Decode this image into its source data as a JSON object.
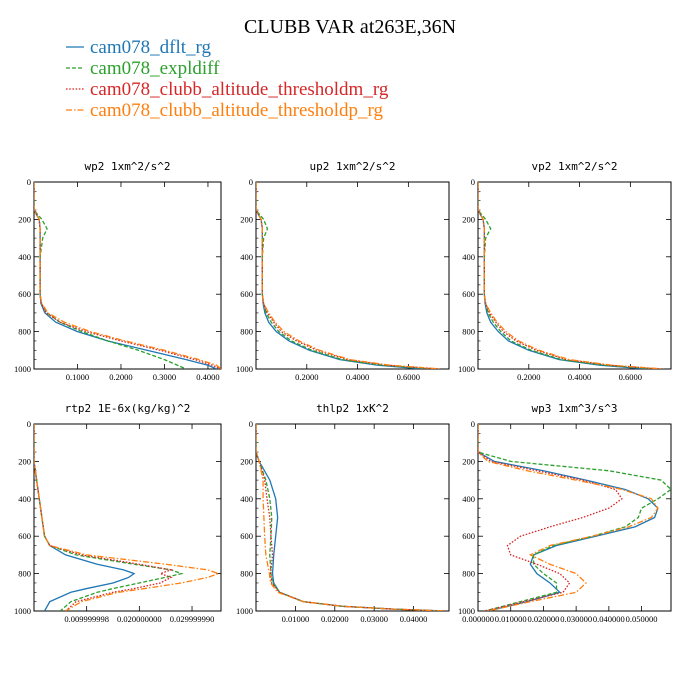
{
  "title": "CLUBB VAR at263E,36N",
  "legend": [
    {
      "label": "cam078_dflt_rg",
      "color": "#1f77b4",
      "dash": "solid"
    },
    {
      "label": "cam078_expldiff",
      "color": "#2ca02c",
      "dash": "dash"
    },
    {
      "label": "cam078_clubb_altitude_thresholdm_rg",
      "color": "#d62728",
      "dash": "dot"
    },
    {
      "label": "cam078_clubb_altitude_thresholdp_rg",
      "color": "#ff7f0e",
      "dash": "dashdot"
    }
  ],
  "chart_data": [
    {
      "type": "line",
      "title": "wp2  1xm^2/s^2",
      "ylim": [
        1000,
        0
      ],
      "yticks": [
        0,
        200,
        400,
        600,
        800,
        1000
      ],
      "xlim": [
        0,
        0.43
      ],
      "xticks": [
        0.1,
        0.2,
        0.3,
        0.4
      ],
      "xticklabels": [
        "0.1000",
        "0.2000",
        "0.3000",
        "0.4000"
      ],
      "y": [
        0,
        150,
        200,
        250,
        300,
        400,
        500,
        600,
        650,
        700,
        750,
        800,
        850,
        900,
        950,
        980,
        1000
      ],
      "series": [
        {
          "name": "cam078_dflt_rg",
          "values": [
            0.0,
            0.0,
            0.012,
            0.014,
            0.014,
            0.014,
            0.014,
            0.014,
            0.016,
            0.025,
            0.05,
            0.1,
            0.17,
            0.26,
            0.35,
            0.4,
            0.42
          ]
        },
        {
          "name": "cam078_expldiff",
          "values": [
            0.0,
            0.0,
            0.018,
            0.03,
            0.02,
            0.014,
            0.014,
            0.014,
            0.017,
            0.03,
            0.06,
            0.11,
            0.17,
            0.24,
            0.3,
            0.33,
            0.35
          ]
        },
        {
          "name": "cam078_clubb_altitude_thresholdm_rg",
          "values": [
            0.0,
            0.0,
            0.012,
            0.014,
            0.014,
            0.014,
            0.014,
            0.014,
            0.017,
            0.028,
            0.06,
            0.12,
            0.2,
            0.29,
            0.37,
            0.41,
            0.43
          ]
        },
        {
          "name": "cam078_clubb_altitude_thresholdp_rg",
          "values": [
            0.0,
            0.0,
            0.012,
            0.014,
            0.014,
            0.014,
            0.014,
            0.014,
            0.018,
            0.032,
            0.07,
            0.13,
            0.21,
            0.3,
            0.38,
            0.42,
            0.43
          ]
        }
      ]
    },
    {
      "type": "line",
      "title": "up2  1xm^2/s^2",
      "ylim": [
        1000,
        0
      ],
      "yticks": [
        0,
        200,
        400,
        600,
        800,
        1000
      ],
      "xlim": [
        0,
        0.76
      ],
      "xticks": [
        0.2,
        0.4,
        0.6
      ],
      "xticklabels": [
        "0.2000",
        "0.4000",
        "0.6000"
      ],
      "y": [
        0,
        150,
        200,
        250,
        300,
        400,
        500,
        600,
        650,
        700,
        750,
        800,
        850,
        900,
        950,
        980,
        1000
      ],
      "series": [
        {
          "name": "cam078_dflt_rg",
          "values": [
            0.0,
            0.0,
            0.02,
            0.025,
            0.025,
            0.025,
            0.025,
            0.025,
            0.028,
            0.035,
            0.05,
            0.08,
            0.13,
            0.21,
            0.33,
            0.48,
            0.66
          ]
        },
        {
          "name": "cam078_expldiff",
          "values": [
            0.0,
            0.0,
            0.03,
            0.045,
            0.03,
            0.025,
            0.025,
            0.025,
            0.03,
            0.04,
            0.06,
            0.09,
            0.14,
            0.22,
            0.34,
            0.5,
            0.7
          ]
        },
        {
          "name": "cam078_clubb_altitude_thresholdm_rg",
          "values": [
            0.0,
            0.0,
            0.02,
            0.025,
            0.025,
            0.025,
            0.025,
            0.025,
            0.03,
            0.045,
            0.07,
            0.1,
            0.16,
            0.24,
            0.36,
            0.52,
            0.72
          ]
        },
        {
          "name": "cam078_clubb_altitude_thresholdp_rg",
          "values": [
            0.0,
            0.0,
            0.02,
            0.025,
            0.025,
            0.025,
            0.025,
            0.025,
            0.03,
            0.05,
            0.075,
            0.11,
            0.17,
            0.25,
            0.37,
            0.53,
            0.73
          ]
        }
      ]
    },
    {
      "type": "line",
      "title": "vp2  1xm^2/s^2",
      "ylim": [
        1000,
        0
      ],
      "yticks": [
        0,
        200,
        400,
        600,
        800,
        1000
      ],
      "xlim": [
        0,
        0.76
      ],
      "xticks": [
        0.2,
        0.4,
        0.6
      ],
      "xticklabels": [
        "0.2000",
        "0.4000",
        "0.6000"
      ],
      "y": [
        0,
        150,
        200,
        250,
        300,
        400,
        500,
        600,
        650,
        700,
        750,
        800,
        850,
        900,
        950,
        980,
        1000
      ],
      "series": [
        {
          "name": "cam078_dflt_rg",
          "values": [
            0.0,
            0.0,
            0.02,
            0.025,
            0.025,
            0.025,
            0.025,
            0.025,
            0.028,
            0.035,
            0.05,
            0.08,
            0.12,
            0.2,
            0.32,
            0.48,
            0.67
          ]
        },
        {
          "name": "cam078_expldiff",
          "values": [
            0.0,
            0.0,
            0.03,
            0.05,
            0.03,
            0.025,
            0.025,
            0.025,
            0.03,
            0.04,
            0.06,
            0.09,
            0.13,
            0.21,
            0.33,
            0.5,
            0.7
          ]
        },
        {
          "name": "cam078_clubb_altitude_thresholdm_rg",
          "values": [
            0.0,
            0.0,
            0.02,
            0.025,
            0.025,
            0.025,
            0.025,
            0.025,
            0.03,
            0.045,
            0.07,
            0.1,
            0.15,
            0.23,
            0.35,
            0.52,
            0.72
          ]
        },
        {
          "name": "cam078_clubb_altitude_thresholdp_rg",
          "values": [
            0.0,
            0.0,
            0.02,
            0.025,
            0.025,
            0.025,
            0.025,
            0.025,
            0.03,
            0.05,
            0.075,
            0.11,
            0.16,
            0.24,
            0.36,
            0.53,
            0.73
          ]
        }
      ]
    },
    {
      "type": "line",
      "title": "rtp2  1E-6x(kg/kg)^2",
      "ylim": [
        1000,
        0
      ],
      "yticks": [
        0,
        200,
        400,
        600,
        800,
        1000
      ],
      "xlim": [
        0,
        0.0355
      ],
      "xticks": [
        0.01,
        0.02,
        0.03
      ],
      "xticklabels": [
        "0.009999998",
        "0.020000000",
        "0.029999990"
      ],
      "y": [
        0,
        200,
        300,
        400,
        500,
        600,
        650,
        700,
        750,
        780,
        800,
        820,
        850,
        880,
        900,
        950,
        1000
      ],
      "series": [
        {
          "name": "cam078_dflt_rg",
          "values": [
            0.0,
            0.0,
            0.0005,
            0.001,
            0.0015,
            0.002,
            0.003,
            0.006,
            0.012,
            0.017,
            0.019,
            0.018,
            0.015,
            0.01,
            0.007,
            0.003,
            0.002
          ]
        },
        {
          "name": "cam078_expldiff",
          "values": [
            0.0,
            0.0,
            0.0005,
            0.001,
            0.0015,
            0.002,
            0.003,
            0.008,
            0.019,
            0.026,
            0.028,
            0.025,
            0.02,
            0.015,
            0.012,
            0.007,
            0.005
          ]
        },
        {
          "name": "cam078_clubb_altitude_thresholdm_rg",
          "values": [
            0.0,
            0.0,
            0.0005,
            0.001,
            0.0015,
            0.002,
            0.003,
            0.009,
            0.02,
            0.026,
            0.024,
            0.026,
            0.024,
            0.019,
            0.015,
            0.008,
            0.006
          ]
        },
        {
          "name": "cam078_clubb_altitude_thresholdp_rg",
          "values": [
            0.0,
            0.0,
            0.0005,
            0.001,
            0.0015,
            0.002,
            0.003,
            0.01,
            0.025,
            0.033,
            0.035,
            0.033,
            0.028,
            0.021,
            0.016,
            0.009,
            0.006
          ]
        }
      ]
    },
    {
      "type": "line",
      "title": "thlp2  1xK^2",
      "ylim": [
        1000,
        0
      ],
      "yticks": [
        0,
        200,
        400,
        600,
        800,
        1000
      ],
      "xlim": [
        0,
        0.049
      ],
      "xticks": [
        0.01,
        0.02,
        0.03,
        0.04
      ],
      "xticklabels": [
        "0.01000",
        "0.02000",
        "0.03000",
        "0.04000"
      ],
      "y": [
        0,
        150,
        200,
        300,
        400,
        500,
        600,
        700,
        800,
        850,
        900,
        950,
        975,
        990,
        1000
      ],
      "series": [
        {
          "name": "cam078_dflt_rg",
          "values": [
            0.0,
            0.0,
            0.0008,
            0.0035,
            0.005,
            0.0055,
            0.005,
            0.0045,
            0.0042,
            0.0045,
            0.006,
            0.012,
            0.022,
            0.035,
            0.048
          ]
        },
        {
          "name": "cam078_expldiff",
          "values": [
            0.0,
            0.0,
            0.0008,
            0.0025,
            0.0035,
            0.004,
            0.0038,
            0.0035,
            0.0038,
            0.0042,
            0.006,
            0.012,
            0.022,
            0.035,
            0.048
          ]
        },
        {
          "name": "cam078_clubb_altitude_thresholdm_rg",
          "values": [
            0.0,
            0.0,
            0.0008,
            0.0022,
            0.0028,
            0.0035,
            0.0038,
            0.0042,
            0.0037,
            0.004,
            0.006,
            0.012,
            0.022,
            0.035,
            0.048
          ]
        },
        {
          "name": "cam078_clubb_altitude_thresholdp_rg",
          "values": [
            0.0,
            0.0,
            0.0008,
            0.0018,
            0.0018,
            0.002,
            0.0022,
            0.0025,
            0.0034,
            0.0037,
            0.0055,
            0.012,
            0.022,
            0.035,
            0.048
          ]
        }
      ]
    },
    {
      "type": "line",
      "title": "wp3  1xm^3/s^3",
      "ylim": [
        1000,
        0
      ],
      "yticks": [
        0,
        200,
        400,
        600,
        800,
        1000
      ],
      "xlim": [
        0,
        0.059
      ],
      "xticks": [
        0.0,
        0.01,
        0.02,
        0.03,
        0.04,
        0.05
      ],
      "xticklabels": [
        "0.000000",
        "0.010000",
        "0.020000",
        "0.030000",
        "0.040000",
        "0.050000"
      ],
      "y": [
        0,
        150,
        200,
        250,
        300,
        350,
        400,
        450,
        500,
        550,
        600,
        650,
        700,
        750,
        800,
        850,
        900,
        950,
        1000
      ],
      "series": [
        {
          "name": "cam078_dflt_rg",
          "values": [
            0.0,
            0.0,
            0.005,
            0.02,
            0.033,
            0.045,
            0.052,
            0.055,
            0.054,
            0.048,
            0.036,
            0.024,
            0.017,
            0.016,
            0.018,
            0.022,
            0.025,
            0.015,
            0.003
          ]
        },
        {
          "name": "cam078_expldiff",
          "values": [
            0.0,
            0.0,
            0.01,
            0.04,
            0.056,
            0.059,
            0.055,
            0.05,
            0.049,
            0.045,
            0.035,
            0.023,
            0.017,
            0.017,
            0.02,
            0.024,
            0.024,
            0.013,
            0.002
          ]
        },
        {
          "name": "cam078_clubb_altitude_thresholdm_rg",
          "values": [
            0.0,
            0.0,
            0.004,
            0.018,
            0.032,
            0.042,
            0.044,
            0.04,
            0.032,
            0.022,
            0.013,
            0.009,
            0.01,
            0.018,
            0.025,
            0.028,
            0.026,
            0.014,
            0.002
          ]
        },
        {
          "name": "cam078_clubb_altitude_thresholdp_rg",
          "values": [
            0.0,
            0.0,
            0.003,
            0.015,
            0.03,
            0.044,
            0.053,
            0.055,
            0.053,
            0.046,
            0.035,
            0.022,
            0.016,
            0.022,
            0.03,
            0.033,
            0.03,
            0.016,
            0.003
          ]
        }
      ]
    }
  ]
}
